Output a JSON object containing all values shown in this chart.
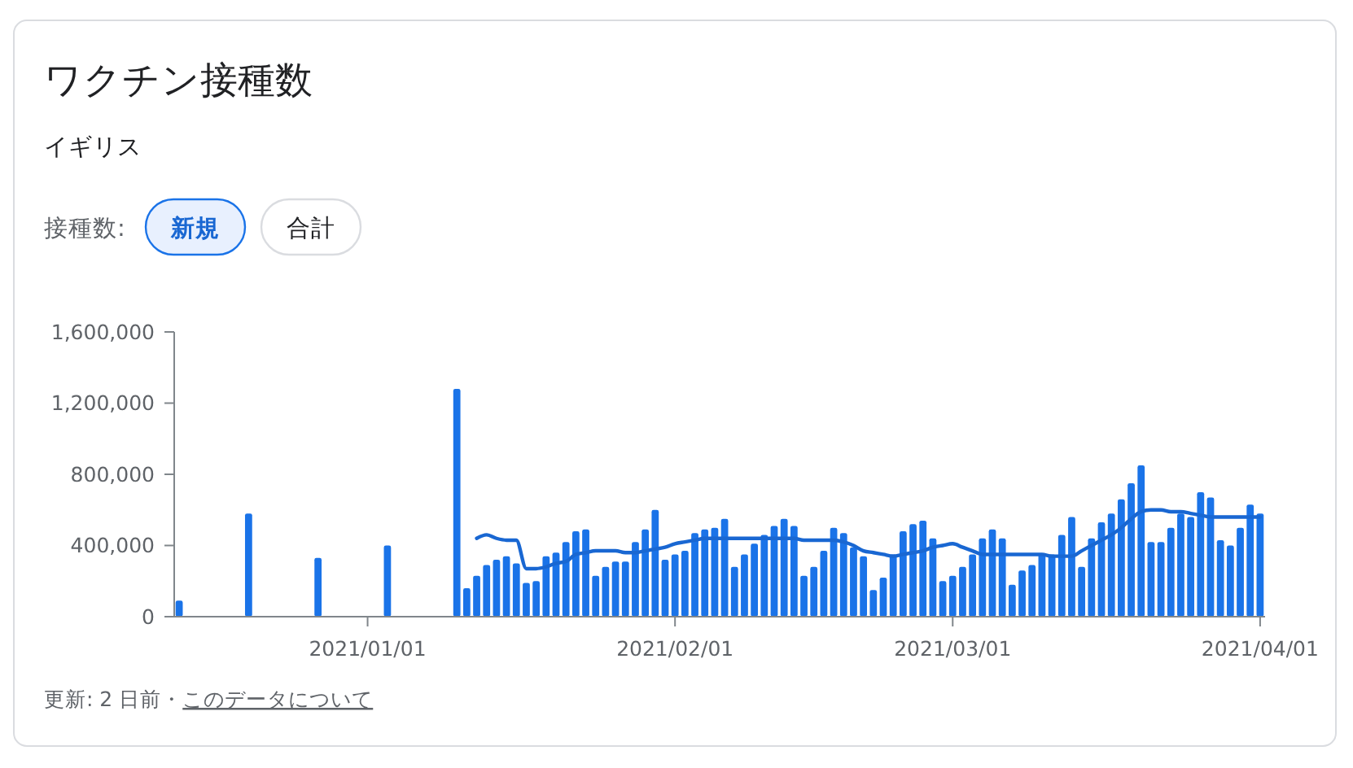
{
  "chart_data": {
    "type": "bar",
    "title": "ワクチン接種数",
    "subtitle": "イギリス",
    "annotations": [
      "接種数:",
      "新規",
      "合計",
      "更新: 2 日前・",
      "このデータについて"
    ],
    "xlim": [
      "2020-12-12T12:00",
      "2021-04-01T12:00"
    ],
    "xticks": [
      {
        "value": "2021-01-01",
        "label": "2021/01/01"
      },
      {
        "value": "2021-02-01",
        "label": "2021/02/01"
      },
      {
        "value": "2021-03-01",
        "label": "2021/03/01"
      },
      {
        "value": "2021-04-01",
        "label": "2021/04/01"
      }
    ],
    "ylim": [
      0,
      1600000
    ],
    "yticks": [
      0,
      {
        "value": 400000,
        "label": "400,000"
      },
      {
        "value": 800000,
        "label": "800,000"
      },
      {
        "value": 1200000,
        "label": "1,200,000"
      },
      {
        "value": 1600000,
        "label": "1,600,000"
      }
    ],
    "series": [
      {
        "color": "#1a73e8",
        "x": [
          "2020-12-13",
          "2020-12-20",
          "2020-12-27",
          "2021-01-03",
          "2021-01-10",
          "2021-01-11",
          "2021-01-12",
          "2021-01-13",
          "2021-01-14",
          "2021-01-15",
          "2021-01-16",
          "2021-01-17",
          "2021-01-18",
          "2021-01-19",
          "2021-01-20",
          "2021-01-21",
          "2021-01-22",
          "2021-01-23",
          "2021-01-24",
          "2021-01-25",
          "2021-01-26",
          "2021-01-27",
          "2021-01-28",
          "2021-01-29",
          "2021-01-30",
          "2021-01-31",
          "2021-02-01",
          "2021-02-02",
          "2021-02-03",
          "2021-02-04",
          "2021-02-05",
          "2021-02-06",
          "2021-02-07",
          "2021-02-08",
          "2021-02-09",
          "2021-02-10",
          "2021-02-11",
          "2021-02-12",
          "2021-02-13",
          "2021-02-14",
          "2021-02-15",
          "2021-02-16",
          "2021-02-17",
          "2021-02-18",
          "2021-02-19",
          "2021-02-20",
          "2021-02-21",
          "2021-02-22",
          "2021-02-23",
          "2021-02-24",
          "2021-02-25",
          "2021-02-26",
          "2021-02-27",
          "2021-02-28",
          "2021-03-01",
          "2021-03-02",
          "2021-03-03",
          "2021-03-04",
          "2021-03-05",
          "2021-03-06",
          "2021-03-07",
          "2021-03-08",
          "2021-03-09",
          "2021-03-10",
          "2021-03-11",
          "2021-03-12",
          "2021-03-13",
          "2021-03-14",
          "2021-03-15",
          "2021-03-16",
          "2021-03-17",
          "2021-03-18",
          "2021-03-19",
          "2021-03-20",
          "2021-03-21",
          "2021-03-22",
          "2021-03-23",
          "2021-03-24",
          "2021-03-25",
          "2021-03-26",
          "2021-03-27",
          "2021-03-28",
          "2021-03-29",
          "2021-03-30",
          "2021-03-31",
          "2021-04-01"
        ],
        "values": [
          90000,
          580000,
          330000,
          400000,
          1280000,
          160000,
          230000,
          290000,
          320000,
          340000,
          300000,
          190000,
          200000,
          340000,
          360000,
          420000,
          480000,
          490000,
          230000,
          280000,
          310000,
          310000,
          420000,
          490000,
          600000,
          320000,
          350000,
          370000,
          470000,
          490000,
          500000,
          550000,
          280000,
          350000,
          410000,
          460000,
          510000,
          550000,
          510000,
          230000,
          280000,
          370000,
          500000,
          470000,
          390000,
          340000,
          150000,
          220000,
          350000,
          480000,
          520000,
          540000,
          440000,
          200000,
          230000,
          280000,
          350000,
          440000,
          490000,
          440000,
          180000,
          260000,
          290000,
          350000,
          350000,
          460000,
          560000,
          280000,
          440000,
          530000,
          580000,
          660000,
          750000,
          850000,
          420000,
          420000,
          500000,
          580000,
          560000,
          700000,
          670000,
          430000,
          400000,
          500000,
          630000,
          580000
        ]
      },
      {
        "type": "line",
        "color": "#1967d2",
        "x": [
          "2021-01-12",
          "2021-01-13",
          "2021-01-14",
          "2021-01-15",
          "2021-01-16",
          "2021-01-17",
          "2021-01-18",
          "2021-01-19",
          "2021-01-20",
          "2021-01-21",
          "2021-01-22",
          "2021-01-23",
          "2021-01-24",
          "2021-01-25",
          "2021-01-26",
          "2021-01-27",
          "2021-01-28",
          "2021-01-29",
          "2021-01-30",
          "2021-01-31",
          "2021-02-01",
          "2021-02-02",
          "2021-02-03",
          "2021-02-04",
          "2021-02-05",
          "2021-02-06",
          "2021-02-07",
          "2021-02-08",
          "2021-02-09",
          "2021-02-10",
          "2021-02-11",
          "2021-02-12",
          "2021-02-13",
          "2021-02-14",
          "2021-02-15",
          "2021-02-16",
          "2021-02-17",
          "2021-02-18",
          "2021-02-19",
          "2021-02-20",
          "2021-02-21",
          "2021-02-22",
          "2021-02-23",
          "2021-02-24",
          "2021-02-25",
          "2021-02-26",
          "2021-02-27",
          "2021-02-28",
          "2021-03-01",
          "2021-03-02",
          "2021-03-03",
          "2021-03-04",
          "2021-03-05",
          "2021-03-06",
          "2021-03-07",
          "2021-03-08",
          "2021-03-09",
          "2021-03-10",
          "2021-03-11",
          "2021-03-12",
          "2021-03-13",
          "2021-03-14",
          "2021-03-15",
          "2021-03-16",
          "2021-03-17",
          "2021-03-18",
          "2021-03-19",
          "2021-03-20",
          "2021-03-21",
          "2021-03-22",
          "2021-03-23",
          "2021-03-24",
          "2021-03-25",
          "2021-03-26",
          "2021-03-27",
          "2021-03-28",
          "2021-03-29",
          "2021-03-30",
          "2021-03-31",
          "2021-04-01"
        ],
        "values": [
          440000,
          460000,
          440000,
          430000,
          430000,
          270000,
          270000,
          280000,
          300000,
          310000,
          350000,
          360000,
          370000,
          370000,
          370000,
          360000,
          360000,
          370000,
          380000,
          390000,
          410000,
          420000,
          430000,
          440000,
          440000,
          440000,
          440000,
          440000,
          440000,
          440000,
          440000,
          440000,
          440000,
          430000,
          430000,
          430000,
          430000,
          420000,
          400000,
          370000,
          360000,
          350000,
          340000,
          350000,
          360000,
          370000,
          390000,
          400000,
          410000,
          390000,
          370000,
          350000,
          350000,
          350000,
          350000,
          350000,
          350000,
          350000,
          340000,
          340000,
          340000,
          370000,
          400000,
          430000,
          460000,
          500000,
          550000,
          590000,
          600000,
          600000,
          590000,
          590000,
          580000,
          570000,
          560000,
          560000,
          560000,
          560000,
          560000,
          560000
        ]
      }
    ]
  }
}
